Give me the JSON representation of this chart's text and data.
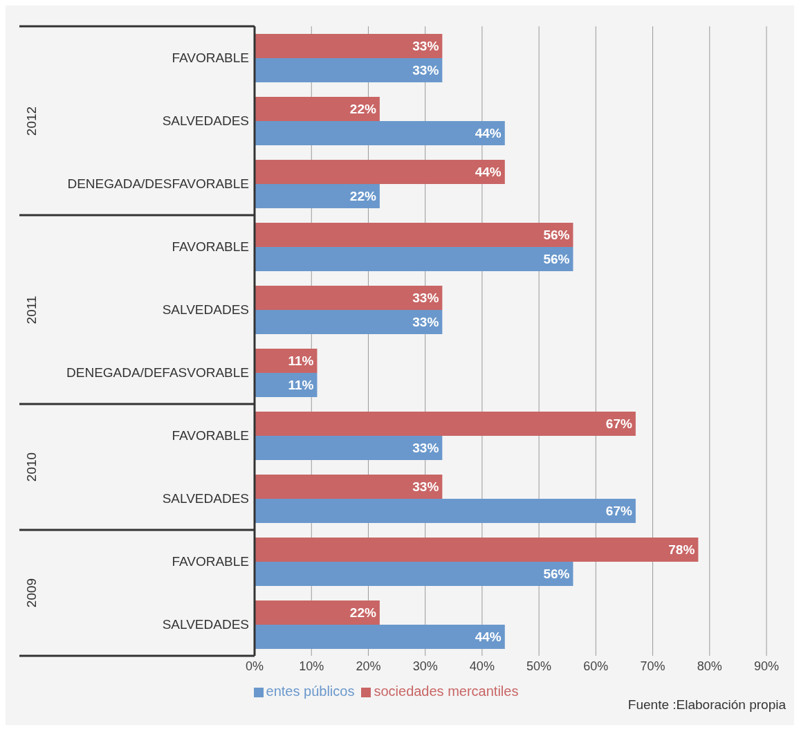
{
  "chart_data": {
    "type": "bar",
    "orientation": "horizontal",
    "categories": [
      "FAVORABLE",
      "SALVEDADES",
      "DENEGADA/DESFAVORABLE",
      "FAVORABLE",
      "SALVEDADES",
      "DENEGADA/DEFASVORABLE",
      "FAVORABLE",
      "SALVEDADES",
      "FAVORABLE",
      "SALVEDADES"
    ],
    "series": [
      {
        "name": "sociedades mercantiles",
        "color": "#c96565",
        "values": [
          33,
          22,
          44,
          56,
          33,
          11,
          67,
          33,
          78,
          22
        ],
        "value_labels": [
          "33%",
          "22%",
          "44%",
          "56%",
          "33%",
          "11%",
          "67%",
          "33%",
          "78%",
          "22%"
        ]
      },
      {
        "name": "entes públicos",
        "color": "#6a98cc",
        "values": [
          33,
          44,
          22,
          56,
          33,
          11,
          33,
          67,
          56,
          44
        ],
        "value_labels": [
          "33%",
          "44%",
          "22%",
          "56%",
          "33%",
          "11%",
          "33%",
          "67%",
          "56%",
          "44%"
        ]
      }
    ],
    "xlim": [
      0,
      90
    ],
    "xticks": [
      {
        "value": 0,
        "label": "0%"
      },
      {
        "value": 10,
        "label": "10%"
      },
      {
        "value": 20,
        "label": "20%"
      },
      {
        "value": 30,
        "label": "30%"
      },
      {
        "value": 40,
        "label": "40%"
      },
      {
        "value": 50,
        "label": "50%"
      },
      {
        "value": 60,
        "label": "60%"
      },
      {
        "value": 70,
        "label": "70%"
      },
      {
        "value": 80,
        "label": "80%"
      },
      {
        "value": 90,
        "label": "90%"
      }
    ],
    "grid": "x",
    "legend": "bottom",
    "annotations": [
      "2012",
      "2011",
      "2010",
      "2009",
      "Fuente :Elaboración propia"
    ]
  }
}
